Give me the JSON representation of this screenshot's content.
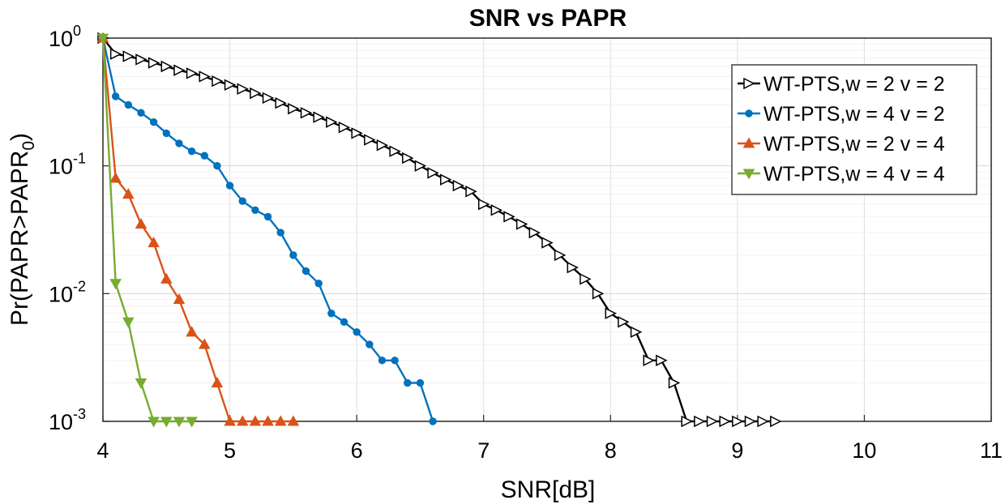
{
  "chart_data": {
    "type": "line",
    "title": "SNR vs PAPR",
    "xlabel": "SNR[dB]",
    "ylabel_main": "Pr(PAPR>PAPR",
    "ylabel_sub": "0",
    "ylabel_close": ")",
    "xlim": [
      4,
      11
    ],
    "ylim": [
      0.001,
      1
    ],
    "yscale": "log",
    "grid": true,
    "legend_position": "top-right",
    "x_ticks": [
      "4",
      "5",
      "6",
      "7",
      "8",
      "9",
      "10",
      "11"
    ],
    "y_ticks": [
      {
        "base": "10",
        "exp": "0"
      },
      {
        "base": "10",
        "exp": "-1"
      },
      {
        "base": "10",
        "exp": "-2"
      },
      {
        "base": "10",
        "exp": "-3"
      }
    ],
    "series": [
      {
        "name": "WT-PTS,w = 2 v = 2",
        "color": "#000000",
        "marker": "triangle-right",
        "x": [
          4.0,
          4.1,
          4.2,
          4.3,
          4.4,
          4.5,
          4.6,
          4.7,
          4.8,
          4.9,
          5.0,
          5.1,
          5.2,
          5.3,
          5.4,
          5.5,
          5.6,
          5.7,
          5.8,
          5.9,
          6.0,
          6.1,
          6.2,
          6.3,
          6.4,
          6.5,
          6.6,
          6.7,
          6.8,
          6.9,
          7.0,
          7.1,
          7.2,
          7.3,
          7.4,
          7.5,
          7.6,
          7.7,
          7.8,
          7.9,
          8.0,
          8.1,
          8.2,
          8.3,
          8.4,
          8.5,
          8.6,
          8.7,
          8.8,
          8.9,
          9.0,
          9.1,
          9.2,
          9.3
        ],
        "y": [
          1.0,
          0.75,
          0.72,
          0.68,
          0.64,
          0.6,
          0.56,
          0.53,
          0.5,
          0.46,
          0.43,
          0.4,
          0.37,
          0.34,
          0.31,
          0.28,
          0.26,
          0.24,
          0.22,
          0.2,
          0.18,
          0.16,
          0.145,
          0.13,
          0.115,
          0.1,
          0.088,
          0.078,
          0.07,
          0.063,
          0.05,
          0.045,
          0.04,
          0.035,
          0.03,
          0.025,
          0.02,
          0.016,
          0.013,
          0.01,
          0.007,
          0.006,
          0.005,
          0.003,
          0.003,
          0.002,
          0.001,
          0.001,
          0.001,
          0.001,
          0.001,
          0.001,
          0.001,
          0.001
        ]
      },
      {
        "name": "WT-PTS,w = 4 v = 2",
        "color": "#0072BD",
        "marker": "circle",
        "x": [
          4.0,
          4.1,
          4.2,
          4.3,
          4.4,
          4.5,
          4.6,
          4.7,
          4.8,
          4.9,
          5.0,
          5.1,
          5.2,
          5.3,
          5.4,
          5.5,
          5.6,
          5.7,
          5.8,
          5.9,
          6.0,
          6.1,
          6.2,
          6.3,
          6.4,
          6.5,
          6.6
        ],
        "y": [
          1.0,
          0.35,
          0.3,
          0.26,
          0.22,
          0.18,
          0.15,
          0.13,
          0.12,
          0.1,
          0.07,
          0.053,
          0.045,
          0.04,
          0.03,
          0.02,
          0.015,
          0.012,
          0.007,
          0.006,
          0.005,
          0.004,
          0.003,
          0.003,
          0.002,
          0.002,
          0.001
        ]
      },
      {
        "name": "WT-PTS,w = 2 v = 4",
        "color": "#D95319",
        "marker": "triangle-up",
        "x": [
          4.0,
          4.1,
          4.2,
          4.3,
          4.4,
          4.5,
          4.6,
          4.7,
          4.8,
          4.9,
          5.0,
          5.1,
          5.2,
          5.3,
          5.4,
          5.5
        ],
        "y": [
          1.0,
          0.08,
          0.06,
          0.035,
          0.025,
          0.013,
          0.009,
          0.005,
          0.004,
          0.002,
          0.001,
          0.001,
          0.001,
          0.001,
          0.001,
          0.001
        ]
      },
      {
        "name": "WT-PTS,w = 4 v = 4",
        "color": "#77AC30",
        "marker": "triangle-down",
        "x": [
          4.0,
          4.1,
          4.2,
          4.3,
          4.4,
          4.5,
          4.6,
          4.7
        ],
        "y": [
          1.0,
          0.012,
          0.006,
          0.002,
          0.001,
          0.001,
          0.001,
          0.001
        ]
      }
    ]
  }
}
